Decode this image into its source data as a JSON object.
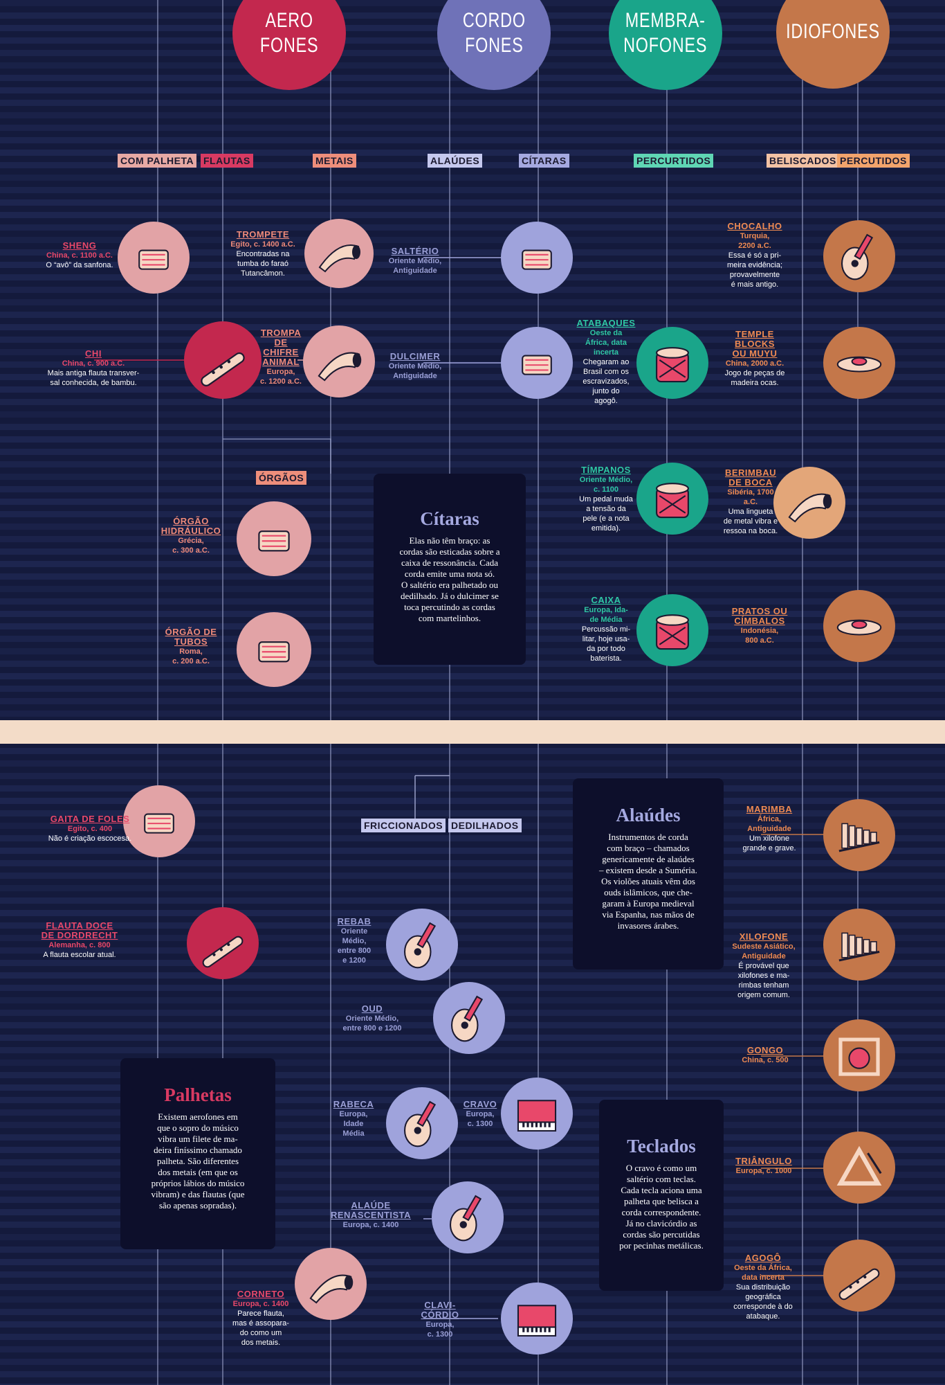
{
  "headers": [
    {
      "id": "aero",
      "text": "AERO\nFONES",
      "color": "#c3284e"
    },
    {
      "id": "cordo",
      "text": "CORDO\nFONES",
      "color": "#6f72b8"
    },
    {
      "id": "membra",
      "text": "MEMBRA-\nNOFONES",
      "color": "#1aa58a"
    },
    {
      "id": "idio",
      "text": "IDIOFONES",
      "color": "#c4774a"
    }
  ],
  "tags": {
    "com_palheta": "COM PALHETA",
    "flautas": "FLAUTAS",
    "metais": "METAIS",
    "alaudes": "ALAÚDES",
    "citaras": "CÍTARAS",
    "percurtidos": "PERCURTIDOS",
    "beliscados": "BELISCADOS",
    "percutidos": "PERCUTIDOS",
    "orgaos": "ÓRGÃOS",
    "friccionados": "FRICCIONADOS",
    "dedilhados": "DEDILHADOS"
  },
  "colors": {
    "aero": "#c3284e",
    "aero_label": "#e8486a",
    "cordo": "#8a8ed0",
    "cordo_label": "#9a9fd6",
    "membra": "#1aa58a",
    "membra_label": "#2fc7a4",
    "idio": "#c4774a",
    "idio_label": "#ee8a52",
    "pink_circle": "#e2a3a6",
    "lavender_circle": "#9fa3dc",
    "bg": "#141a3c",
    "divider": "#f3dcc8"
  },
  "instruments": {
    "sheng": {
      "t": "SHENG",
      "m": "China, c. 1100 a.C.",
      "d": "O “avô” da sanfona.",
      "icon": "sheng-icon"
    },
    "chi": {
      "t": "CHI",
      "m": "China, c. 900 a.C.",
      "d": "Mais antiga flauta transver-\nsal conhecida, de bambu.",
      "icon": "flute-icon"
    },
    "trompete": {
      "t": "TROMPETE",
      "m": "Egito, c. 1400 a.C.",
      "d": "Encontradas na\ntumba do faraó\nTutancâmon.",
      "icon": "trumpet-icon"
    },
    "trompa": {
      "t": "TROMPA\nDE\nCHIFRE\nANIMAL",
      "m": "Europa,\nc. 1200 a.C.",
      "d": "",
      "icon": "horn-icon"
    },
    "orgao_h": {
      "t": "ÓRGÃO\nHIDRÁULICO",
      "m": "Grécia,\nc. 300 a.C.",
      "d": "",
      "icon": "organ-icon"
    },
    "orgao_t": {
      "t": "ÓRGÃO DE\nTUBOS",
      "m": "Roma,\nc. 200 a.C.",
      "d": "",
      "icon": "pipe-organ-icon"
    },
    "salterio": {
      "t": "SALTÉRIO",
      "m": "Oriente Médio,\nAntiguidade",
      "d": "",
      "icon": "psaltery-icon"
    },
    "dulcimer": {
      "t": "DULCIMER",
      "m": "Oriente Médio,\nAntiguidade",
      "d": "",
      "icon": "dulcimer-icon"
    },
    "atabaques": {
      "t": "ATABAQUES",
      "m": "Oeste da\nÁfrica, data\nincerta",
      "d": "Chegaram ao\nBrasil com os\nescravizados,\njunto do\nagogô.",
      "icon": "atabaque-icon"
    },
    "timpanos": {
      "t": "TÍMPANOS",
      "m": "Oriente Médio,\nc. 1100",
      "d": "Um pedal muda\na tensão da\npele (e a nota\nemitida).",
      "icon": "timpani-icon"
    },
    "caixa": {
      "t": "CAIXA",
      "m": "Europa, Ida-\nde Média",
      "d": "Percussão mi-\nlitar, hoje usa-\nda por todo\nbaterista.",
      "icon": "snare-drum-icon"
    },
    "chocalho": {
      "t": "CHOCALHO",
      "m": "Turquia,\n2200 a.C.",
      "d": "Essa é só a pri-\nmeira evidência;\nprovavelmente\né mais antigo.",
      "icon": "maraca-icon"
    },
    "temple": {
      "t": "TEMPLE\nBLOCKS\nOU MUYU",
      "m": "China, 2000 a.C.",
      "d": "Jogo de peças de\nmadeira ocas.",
      "icon": "temple-block-icon"
    },
    "berimbau": {
      "t": "BERIMBAU\nDE BOCA",
      "m": "Sibéria, 1700\na.C.",
      "d": "Uma lingueta\nde metal vibra e\nressoa na boca.",
      "icon": "jaw-harp-icon"
    },
    "pratos": {
      "t": "PRATOS OU\nCÍMBALOS",
      "m": "Indonésia,\n800 a.C.",
      "d": "",
      "icon": "cymbal-icon"
    },
    "gaita": {
      "t": "GAITA DE FOLES",
      "m": "Egito, c. 400",
      "d": "Não é criação escocesa.",
      "icon": "bagpipe-icon"
    },
    "flauta_doce": {
      "t": "FLAUTA DOCE\nDE DORDRECHT",
      "m": "Alemanha, c. 800",
      "d": "A flauta escolar atual.",
      "icon": "recorder-icon"
    },
    "corneto": {
      "t": "CORNETO",
      "m": "Europa, c. 1400",
      "d": "Parece flauta,\nmas é assopara-\ndo como um\ndos metais.",
      "icon": "cornett-icon"
    },
    "rebab": {
      "t": "REBAB",
      "m": "Oriente\nMédio,\nentre 800\ne 1200",
      "d": "",
      "icon": "rebab-icon"
    },
    "oud": {
      "t": "OUD",
      "m": "Oriente Médio,\nentre 800 e 1200",
      "d": "",
      "icon": "oud-icon"
    },
    "rabeca": {
      "t": "RABECA",
      "m": "Europa,\nIdade\nMédia",
      "d": "",
      "icon": "fiddle-icon"
    },
    "cravo": {
      "t": "CRAVO",
      "m": "Europa,\nc. 1300",
      "d": "",
      "icon": "harpsichord-icon"
    },
    "alaude_r": {
      "t": "ALAÚDE\nRENASCENTISTA",
      "m": "Europa, c. 1400",
      "d": "",
      "icon": "lute-icon"
    },
    "clavicordio": {
      "t": "CLAVI-\nCÓRDIO",
      "m": "Europa,\nc. 1300",
      "d": "",
      "icon": "clavichord-icon"
    },
    "marimba": {
      "t": "MARIMBA",
      "m": "África,\nAntiguidade",
      "d": "Um xilofone\ngrande e grave.",
      "icon": "marimba-icon"
    },
    "xilofone": {
      "t": "XILOFONE",
      "m": "Sudeste Asiático,\nAntiguidade",
      "d": "É provável que\nxilofones e ma-\nrimbas tenham\norigem comum.",
      "icon": "xylophone-icon"
    },
    "gongo": {
      "t": "GONGO",
      "m": "China, c. 500",
      "d": "",
      "icon": "gong-icon"
    },
    "triangulo": {
      "t": "TRIÂNGULO",
      "m": "Europa, c. 1000",
      "d": "",
      "icon": "triangle-icon"
    },
    "agogo": {
      "t": "AGOGÔ",
      "m": "Oeste da África,\ndata incerta",
      "d": "Sua distribuição\ngeográfica\ncorresponde à do\natabaque.",
      "icon": "agogo-icon"
    }
  },
  "boxes": {
    "citaras": {
      "title": "Cítaras",
      "body": "Elas não têm braço: as\ncordas são esticadas sobre a\ncaixa de ressonância. Cada\ncorda emite uma nota só.\nO saltério era palhetado ou\ndedilhado. Já o dulcimer se\ntoca percutindo as cordas\ncom martelinhos."
    },
    "alaudes": {
      "title": "Alaúdes",
      "body": "Instrumentos de corda\ncom braço – chamados\ngenericamente de alaúdes\n– existem desde a Suméria.\nOs violões atuais vêm dos\nouds islâmicos, que che-\ngaram à Europa medieval\nvia Espanha, nas mãos de\ninvasores árabes."
    },
    "palhetas": {
      "title": "Palhetas",
      "body": "Existem aerofones em\nque o sopro do músico\nvibra um filete de ma-\ndeira finíssimo chamado\npalheta. São diferentes\ndos metais (em que os\npróprios lábios do músico\nvibram) e das flautas (que\nsão apenas sopradas)."
    },
    "teclados": {
      "title": "Teclados",
      "body": "O cravo é como um\nsaltério com teclas.\nCada tecla aciona uma\npalheta que belisca a\ncorda correspondente.\nJá no clavicórdio as\ncordas são percutidas\npor pecinhas metálicas."
    }
  }
}
